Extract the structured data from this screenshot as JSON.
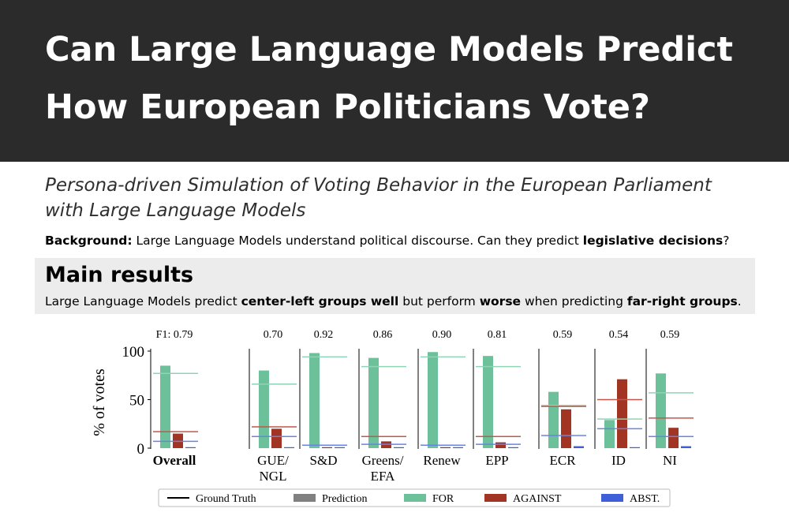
{
  "header": {
    "title_line1": "Can Large Language Models Predict",
    "title_line2": "How European Politicians Vote?"
  },
  "subtitle": {
    "line1": "Persona-driven Simulation of Voting Behavior in the European Parliament",
    "line2": "with Large Language Models"
  },
  "background": {
    "label": "Background:",
    "text1": " Large Language Models understand political discourse. Can they predict ",
    "bold": "legislative decisions",
    "text2": "?"
  },
  "main_results": {
    "title": "Main results",
    "text1": "Large Language Models predict ",
    "bold1": "center-left groups well",
    "text2": " but perform ",
    "bold2": "worse",
    "text3": " when predicting ",
    "bold3": "far-right groups",
    "text4": "."
  },
  "colors": {
    "for": "#6cc19b",
    "against": "#a13422",
    "abst": "#3f5fd8",
    "for_line": "#8fd4b5",
    "against_line": "#c4574a",
    "abst_line": "#6a83e6"
  },
  "chart_data": {
    "type": "bar",
    "ylabel": "% of votes",
    "ylim": [
      0,
      100
    ],
    "yticks": [
      0,
      50,
      100
    ],
    "series_names": [
      "FOR",
      "AGAINST",
      "ABST."
    ],
    "groups": [
      {
        "name": "Overall",
        "label_lines": [
          "Overall"
        ],
        "bold": true,
        "f1_text": "F1: 0.79",
        "prediction": [
          85,
          15,
          1
        ],
        "ground_truth": [
          77,
          17,
          7
        ]
      },
      {
        "name": "GUE/NGL",
        "label_lines": [
          "GUE/",
          "NGL"
        ],
        "bold": false,
        "f1_text": "0.70",
        "prediction": [
          80,
          20,
          1
        ],
        "ground_truth": [
          66,
          22,
          12
        ]
      },
      {
        "name": "S&D",
        "label_lines": [
          "S&D"
        ],
        "bold": false,
        "f1_text": "0.92",
        "prediction": [
          98,
          1,
          1
        ],
        "ground_truth": [
          94,
          3,
          3
        ]
      },
      {
        "name": "Greens/EFA",
        "label_lines": [
          "Greens/",
          "EFA"
        ],
        "bold": false,
        "f1_text": "0.86",
        "prediction": [
          93,
          7,
          1
        ],
        "ground_truth": [
          84,
          12,
          4
        ]
      },
      {
        "name": "Renew",
        "label_lines": [
          "Renew"
        ],
        "bold": false,
        "f1_text": "0.90",
        "prediction": [
          99,
          1,
          1
        ],
        "ground_truth": [
          94,
          3,
          3
        ]
      },
      {
        "name": "EPP",
        "label_lines": [
          "EPP"
        ],
        "bold": false,
        "f1_text": "0.81",
        "prediction": [
          95,
          6,
          1
        ],
        "ground_truth": [
          84,
          12,
          4
        ]
      },
      {
        "name": "ECR",
        "label_lines": [
          "ECR"
        ],
        "bold": false,
        "f1_text": "0.59",
        "prediction": [
          58,
          40,
          2
        ],
        "ground_truth": [
          44,
          43,
          13
        ]
      },
      {
        "name": "ID",
        "label_lines": [
          "ID"
        ],
        "bold": false,
        "f1_text": "0.54",
        "prediction": [
          29,
          71,
          1
        ],
        "ground_truth": [
          30,
          50,
          20
        ]
      },
      {
        "name": "NI",
        "label_lines": [
          "NI"
        ],
        "bold": false,
        "f1_text": "0.59",
        "prediction": [
          77,
          21,
          2
        ],
        "ground_truth": [
          57,
          31,
          12
        ]
      }
    ],
    "legend": [
      {
        "label": "Ground Truth",
        "kind": "line",
        "color": "#000000"
      },
      {
        "label": "Prediction",
        "kind": "patch",
        "color": "#808080"
      },
      {
        "label": "FOR",
        "kind": "patch",
        "color": "#6cc19b"
      },
      {
        "label": "AGAINST",
        "kind": "patch",
        "color": "#a13422"
      },
      {
        "label": "ABST.",
        "kind": "patch",
        "color": "#3f5fd8"
      }
    ]
  }
}
